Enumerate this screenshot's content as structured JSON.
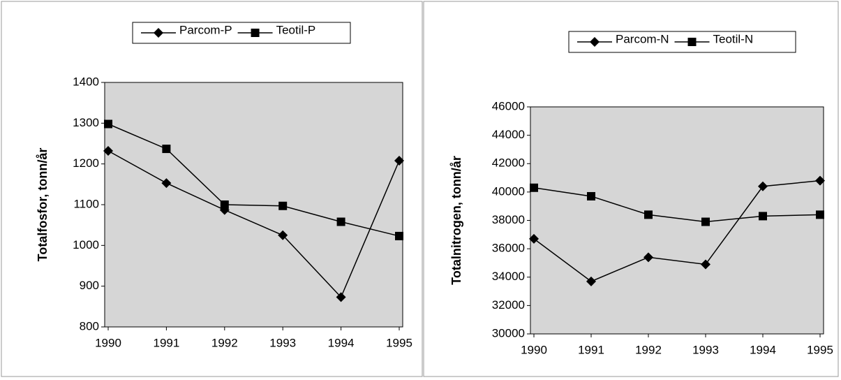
{
  "chart_data": [
    {
      "type": "line",
      "y_label": "Totalfosfor, tonn/år",
      "categories": [
        "1990",
        "1991",
        "1992",
        "1993",
        "1994",
        "1995"
      ],
      "series": [
        {
          "name": "Parcom-P",
          "color": "#000000",
          "marker": "diamond",
          "values": [
            1232,
            1153,
            1087,
            1025,
            873,
            1208
          ]
        },
        {
          "name": "Teotil-P",
          "color": "#000000",
          "marker": "square",
          "values": [
            1298,
            1237,
            1100,
            1097,
            1058,
            1023
          ]
        }
      ],
      "ylim": [
        800,
        1400
      ],
      "yticks": [
        800,
        900,
        1000,
        1100,
        1200,
        1300,
        1400
      ]
    },
    {
      "type": "line",
      "y_label": "Totalnitrogen, tonn/år",
      "categories": [
        "1990",
        "1991",
        "1992",
        "1993",
        "1994",
        "1995"
      ],
      "series": [
        {
          "name": "Parcom-N",
          "color": "#000000",
          "marker": "diamond",
          "values": [
            36700,
            33700,
            35400,
            34900,
            40400,
            40800
          ]
        },
        {
          "name": "Teotil-N",
          "color": "#000000",
          "marker": "square",
          "values": [
            40300,
            39700,
            38400,
            37900,
            38300,
            38400
          ]
        }
      ],
      "ylim": [
        30000,
        46000
      ],
      "yticks": [
        30000,
        32000,
        34000,
        36000,
        38000,
        40000,
        42000,
        44000,
        46000
      ]
    }
  ]
}
